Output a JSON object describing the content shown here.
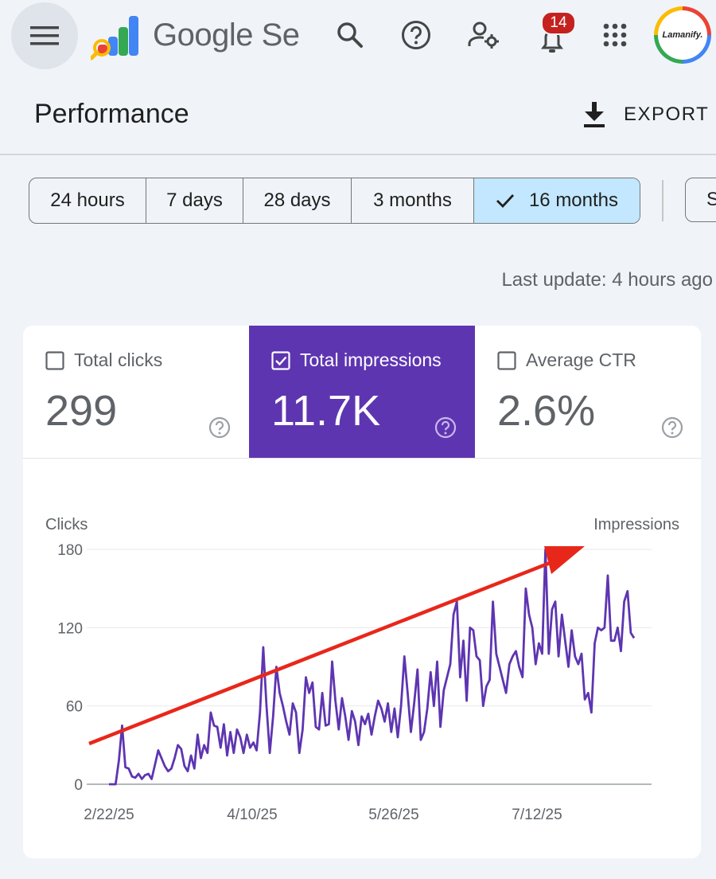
{
  "header": {
    "product_name": "Google Search Console",
    "notification_count": "14",
    "avatar_text": "Lamanify.",
    "icons": [
      "menu-icon",
      "search-icon",
      "help-icon",
      "manage-users-icon",
      "notifications-icon",
      "apps-icon"
    ]
  },
  "page": {
    "title": "Performance",
    "export_label": "EXPORT",
    "last_update": "Last update: 4 hours ago"
  },
  "date_ranges": {
    "options": [
      "24 hours",
      "7 days",
      "28 days",
      "3 months",
      "16 months"
    ],
    "selected": "16 months",
    "extra_chip": "S"
  },
  "metrics": [
    {
      "label": "Total clicks",
      "value": "299",
      "checked": false
    },
    {
      "label": "Total impressions",
      "value": "11.7K",
      "checked": true
    },
    {
      "label": "Average CTR",
      "value": "2.6%",
      "checked": false
    }
  ],
  "colors": {
    "accent": "#5e35b1",
    "chip_selected": "#c2e7ff",
    "trend_arrow": "#e8271b",
    "series_line": "#5e35b1"
  },
  "chart_data": {
    "type": "line",
    "left_axis_label": "Clicks",
    "right_axis_label": "Impressions",
    "ylim": [
      0,
      180
    ],
    "yticks": [
      0,
      60,
      120,
      180
    ],
    "xticks": [
      "2/22/25",
      "4/10/25",
      "5/26/25",
      "7/12/25"
    ],
    "grid": true,
    "annotation": "red upward trend arrow",
    "series": [
      {
        "values": [
          0,
          0,
          0,
          18,
          45,
          13,
          12,
          6,
          5,
          8,
          4,
          7,
          8,
          4,
          15,
          26,
          20,
          14,
          10,
          12,
          20,
          30,
          27,
          14,
          10,
          22,
          12,
          38,
          20,
          30,
          24,
          55,
          45,
          44,
          28,
          46,
          22,
          40,
          24,
          42,
          36,
          24,
          38,
          28,
          32,
          26,
          55,
          105,
          60,
          24,
          52,
          90,
          70,
          60,
          48,
          38,
          62,
          55,
          24,
          42,
          82,
          70,
          78,
          44,
          42,
          70,
          45,
          46,
          94,
          64,
          42,
          66,
          52,
          34,
          56,
          48,
          30,
          52,
          46,
          54,
          38,
          52,
          64,
          58,
          48,
          62,
          40,
          58,
          36,
          60,
          98,
          70,
          40,
          62,
          88,
          34,
          40,
          58,
          86,
          60,
          94,
          44,
          72,
          82,
          92,
          130,
          140,
          82,
          110,
          64,
          120,
          118,
          98,
          95,
          60,
          75,
          80,
          140,
          100,
          90,
          80,
          70,
          92,
          98,
          102,
          90,
          82,
          150,
          130,
          120,
          92,
          108,
          100,
          180,
          100,
          134,
          140,
          98,
          130,
          110,
          90,
          118,
          98,
          92,
          100,
          65,
          70,
          55,
          108,
          120,
          118,
          120,
          160,
          110,
          110,
          120,
          102,
          140,
          148,
          116,
          112
        ]
      }
    ]
  }
}
